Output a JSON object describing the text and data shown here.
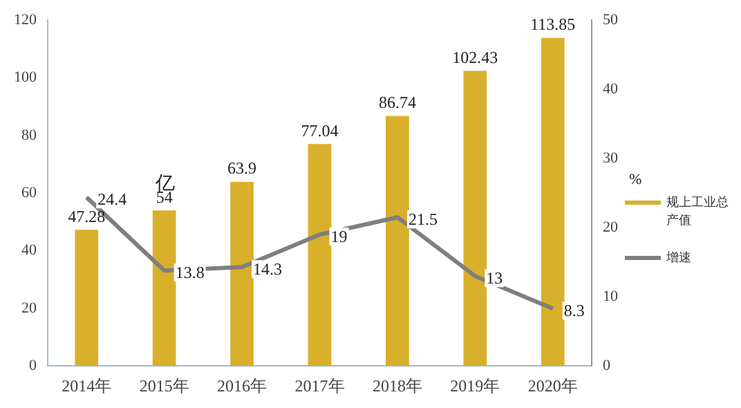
{
  "chart_data": {
    "type": "bar",
    "categories": [
      "2014年",
      "2015年",
      "2016年",
      "2017年",
      "2018年",
      "2019年",
      "2020年"
    ],
    "ylabel": "亿",
    "y2label": "%",
    "series": [
      {
        "name": "规上工业总产值",
        "color": "#d9b02c",
        "values": [
          47.28,
          54,
          63.9,
          77.04,
          86.74,
          102.43,
          113.85
        ]
      },
      {
        "name": "增速",
        "type": "line",
        "axis": "y2",
        "color": "#7f7f7f",
        "values": [
          24.4,
          13.8,
          14.3,
          19,
          21.5,
          13,
          8.3
        ]
      }
    ],
    "ylim": [
      0,
      120
    ],
    "yticks": [
      0,
      20,
      40,
      60,
      80,
      100,
      120
    ],
    "y2lim": [
      0,
      50
    ],
    "y2ticks": [
      0,
      10,
      20,
      30,
      40,
      50
    ],
    "data_labels": true,
    "grid": false,
    "legend": "right",
    "marker": "none"
  }
}
